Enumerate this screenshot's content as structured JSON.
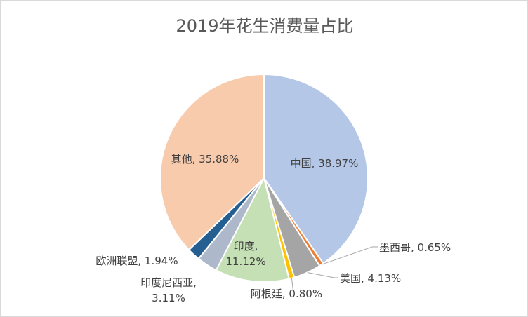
{
  "chart_data": {
    "type": "pie",
    "title": "2019年花生消费量占比",
    "slices": [
      {
        "name": "中国",
        "value": 38.97,
        "label": "中国, 38.97%",
        "color": "#b4c7e7"
      },
      {
        "name": "墨西哥",
        "value": 0.65,
        "label": "墨西哥, 0.65%",
        "color": "#ed7d31"
      },
      {
        "name": "美国",
        "value": 4.13,
        "label": "美国, 4.13%",
        "color": "#a5a5a5"
      },
      {
        "name": "阿根廷",
        "value": 0.8,
        "label": "阿根廷, 0.80%",
        "color": "#ffc000"
      },
      {
        "name": "印度",
        "value": 11.12,
        "label_lines": [
          "印度,",
          "11.12%"
        ],
        "color": "#c5e0b4"
      },
      {
        "name": "印度尼西亚",
        "value": 3.11,
        "label_lines": [
          "印度尼西亚,",
          "3.11%"
        ],
        "color": "#adb9ca"
      },
      {
        "name": "欧洲联盟",
        "value": 1.94,
        "label": "欧洲联盟, 1.94%",
        "color": "#255e91"
      },
      {
        "name": "其他",
        "value": 35.88,
        "label": "其他, 35.88%",
        "color": "#f8cbad"
      }
    ]
  }
}
